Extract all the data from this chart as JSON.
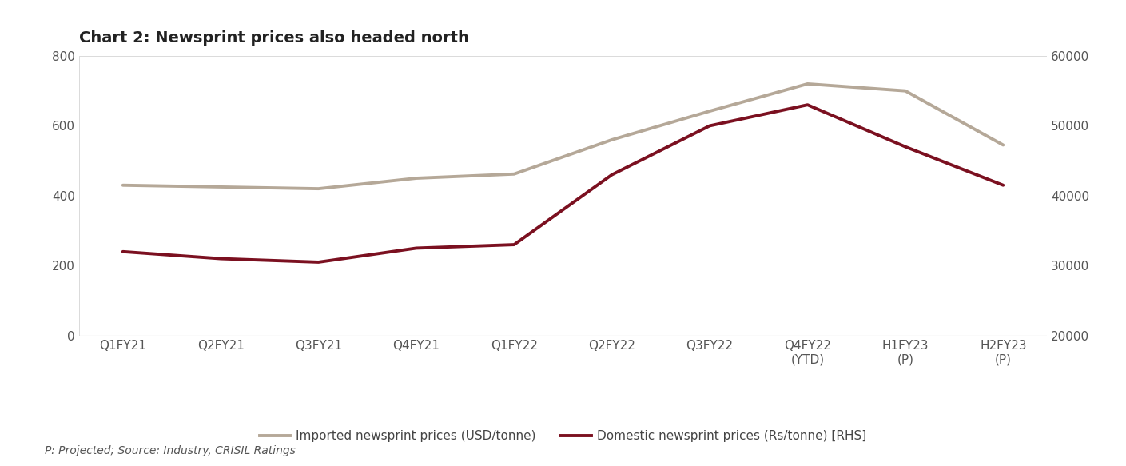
{
  "title": "Chart 2: Newsprint prices also headed north",
  "categories": [
    "Q1FY21",
    "Q2FY21",
    "Q3FY21",
    "Q4FY21",
    "Q1FY22",
    "Q2FY22",
    "Q3FY22",
    "Q4FY22\n(YTD)",
    "H1FY23\n(P)",
    "H2FY23\n(P)"
  ],
  "imported_prices": [
    430,
    425,
    420,
    450,
    462,
    560,
    642,
    720,
    700,
    545
  ],
  "domestic_prices": [
    32000,
    31000,
    30500,
    32500,
    33000,
    43000,
    50000,
    53000,
    47000,
    41500
  ],
  "imported_color": "#b5a898",
  "domestic_color": "#7b1020",
  "left_ylim": [
    0,
    800
  ],
  "right_ylim": [
    20000,
    60000
  ],
  "left_yticks": [
    0,
    200,
    400,
    600,
    800
  ],
  "right_yticks": [
    20000,
    30000,
    40000,
    50000,
    60000
  ],
  "left_label": "Imported newsprint prices (USD/tonne)",
  "right_label": "Domestic newsprint prices (Rs/tonne) [RHS]",
  "footnote": "P: Projected; Source: Industry, CRISIL Ratings",
  "background_color": "#ffffff",
  "line_width": 2.8,
  "title_fontsize": 14,
  "tick_fontsize": 11,
  "legend_fontsize": 11,
  "footnote_fontsize": 10
}
